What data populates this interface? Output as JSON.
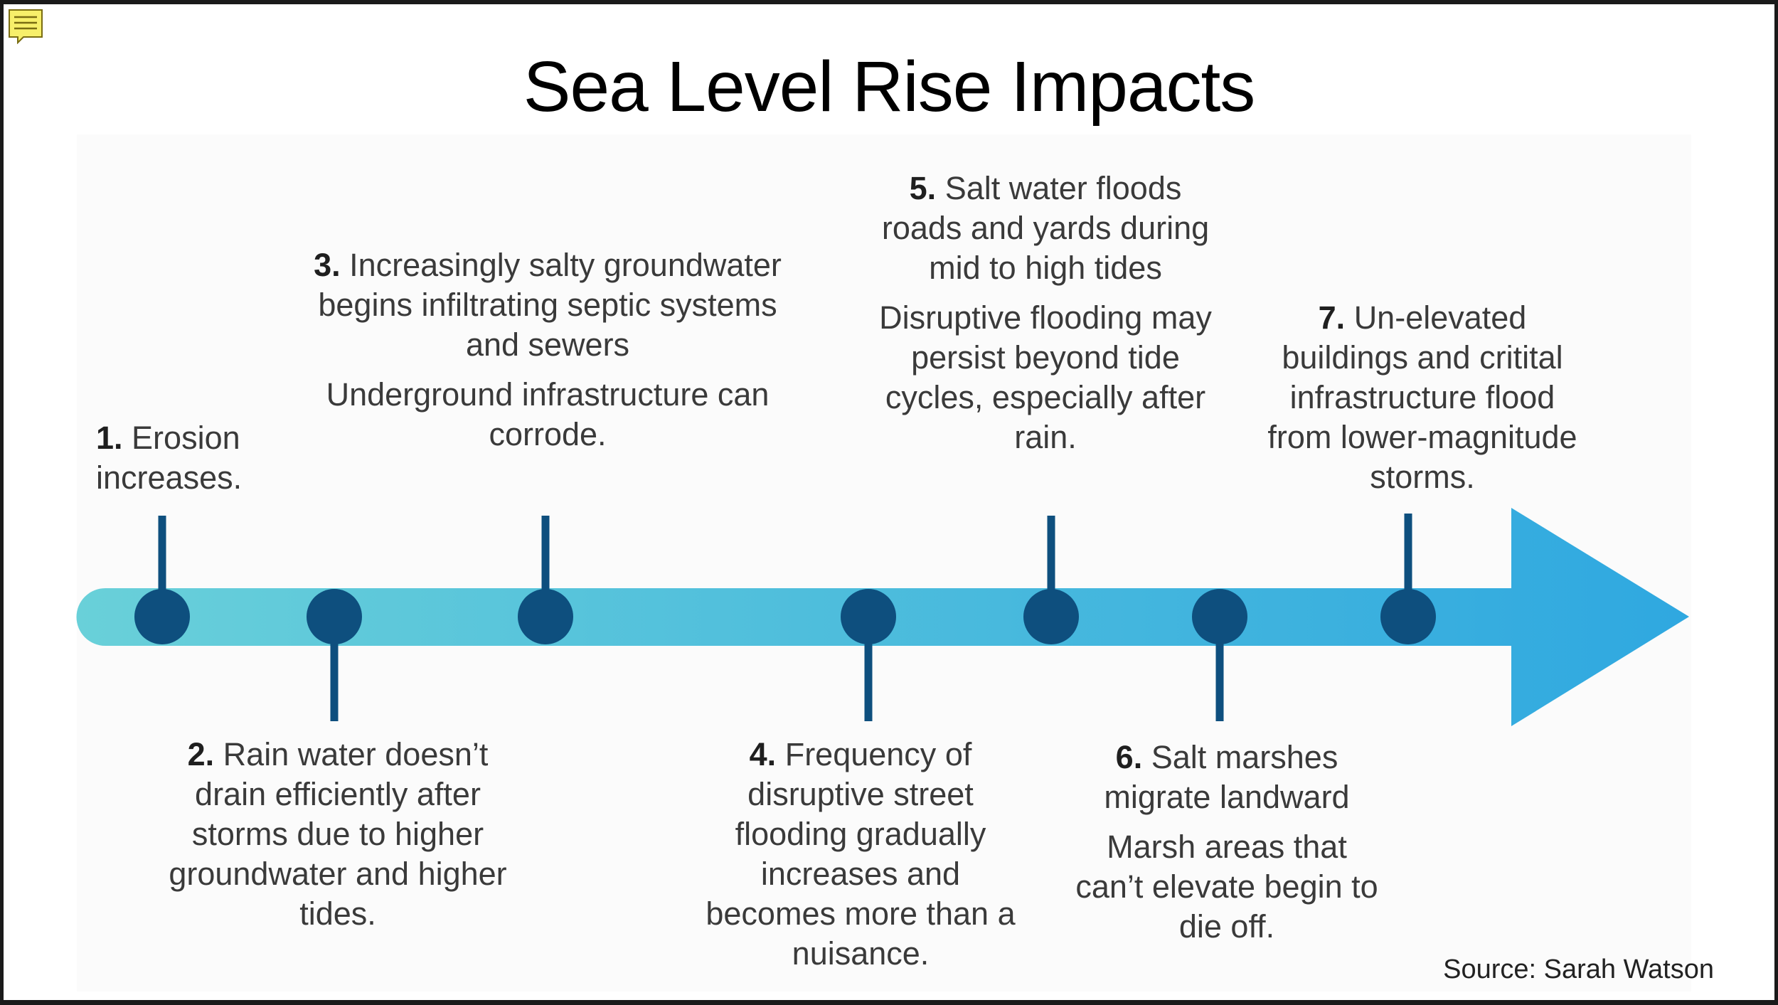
{
  "title": "Sea Level Rise Impacts",
  "source": "Source: Sarah Watson",
  "colors": {
    "arrow_start": "#69d0d9",
    "arrow_end": "#2fa8e0",
    "marker": "#0e4f7e",
    "text": "#3a3a3a"
  },
  "events": [
    {
      "number": "1.",
      "text": "Erosion increases.",
      "detail": "",
      "side": "above"
    },
    {
      "number": "2.",
      "text": "Rain water doesn’t drain efficiently after storms due to higher groundwater and higher tides.",
      "detail": "",
      "side": "below"
    },
    {
      "number": "3.",
      "text": "Increasingly salty groundwater begins infiltrating septic systems and sewers",
      "detail": "Underground infrastructure can corrode.",
      "side": "above"
    },
    {
      "number": "4.",
      "text": "Frequency of disruptive street flooding gradually increases and becomes more than a nuisance.",
      "detail": "",
      "side": "below"
    },
    {
      "number": "5.",
      "text": "Salt water floods roads and yards during mid to high tides",
      "detail": "Disruptive flooding may persist beyond tide cycles, especially after rain.",
      "side": "above"
    },
    {
      "number": "6.",
      "text": "Salt marshes migrate landward",
      "detail": "Marsh areas that can’t elevate begin to die off.",
      "side": "below"
    },
    {
      "number": "7.",
      "text": "Un-elevated buildings and critital infrastructure flood from lower-magnitude storms.",
      "detail": "",
      "side": "above"
    }
  ]
}
